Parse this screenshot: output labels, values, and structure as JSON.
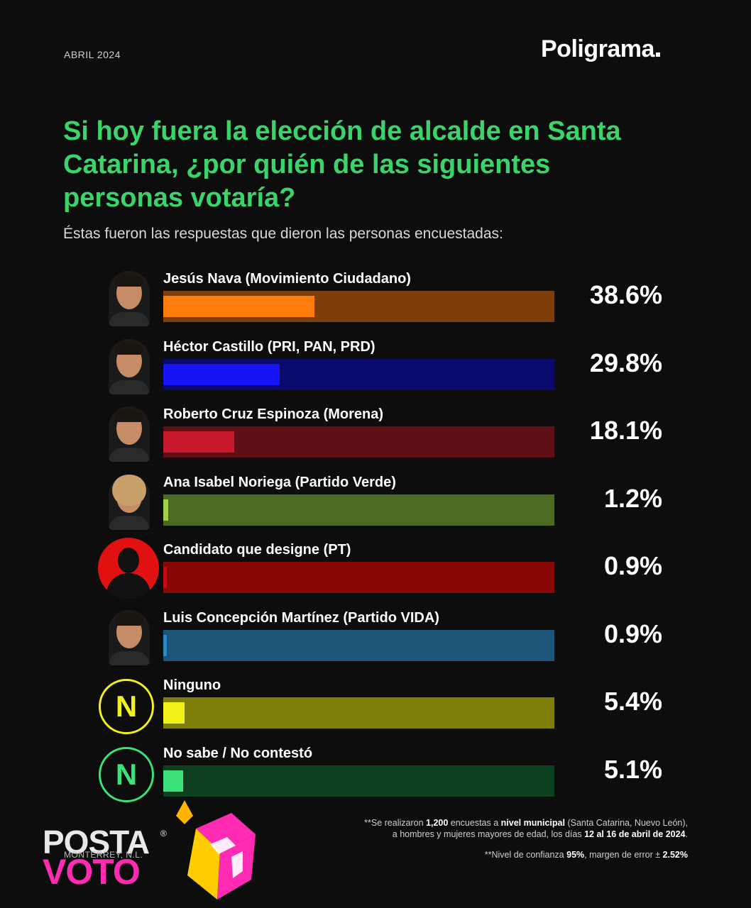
{
  "header": {
    "date": "ABRIL 2024",
    "brand": "Poligrama"
  },
  "question": "Si hoy fuera la elección de alcalde en Santa Catarina, ¿por quién de las siguientes personas votaría?",
  "subtitle": "Éstas fueron las respuestas que dieron las personas encuestadas:",
  "chart_data": {
    "type": "bar",
    "orientation": "horizontal",
    "categories": [
      "Jesús Nava (Movimiento Ciudadano)",
      "Héctor Castillo (PRI, PAN, PRD)",
      "Roberto Cruz Espinoza (Morena)",
      "Ana Isabel Noriega (Partido Verde)",
      "Candidato que designe (PT)",
      "Luis Concepción Martínez  (Partido VIDA)",
      "Ninguno",
      "No sabe / No contestó"
    ],
    "values": [
      38.6,
      29.8,
      18.1,
      1.2,
      0.9,
      0.9,
      5.4,
      5.1
    ],
    "value_labels": [
      "38.6%",
      "29.8%",
      "18.1%",
      "1.2%",
      "0.9%",
      "0.9%",
      "5.4%",
      "5.1%"
    ],
    "unit": "%",
    "xlim": [
      0,
      100
    ],
    "bar_colors": [
      "#ff7d0d",
      "#1414f5",
      "#c7182c",
      "#9fd04a",
      "#c20e0e",
      "#2e88c6",
      "#f2f21a",
      "#3be27a"
    ],
    "track_colors": [
      "#7c3e0c",
      "#0a0a6e",
      "#5e0f15",
      "#4c6a22",
      "#880808",
      "#1d557a",
      "#7e7e08",
      "#0d4020"
    ],
    "grid": false,
    "legend": "none"
  },
  "icons": [
    "candidate-photo",
    "candidate-photo",
    "candidate-photo",
    "candidate-photo",
    "silhouette-icon",
    "candidate-photo",
    "n-badge-icon",
    "n-badge-icon"
  ],
  "badge_letter": "N",
  "footnotes": {
    "line1_a": "**Se realizaron ",
    "line1_b": "1,200",
    "line1_c": " encuestas a ",
    "line1_d": "nivel municipal",
    "line1_e": " (Santa Catarina, Nuevo León),",
    "line2_a": "a hombres  y mujeres mayores de edad, los días ",
    "line2_b": "12 al 16 de abril de 2024",
    "line2_c": ".",
    "line3_a": "**Nivel de confianza ",
    "line3_b": "95%",
    "line3_c": ", margen de error ± ",
    "line3_d": "2.52%"
  },
  "watermark": {
    "posta": "POSTA",
    "registered": "®",
    "voto": "VOTO",
    "location": "MONTERREY, N.L."
  }
}
